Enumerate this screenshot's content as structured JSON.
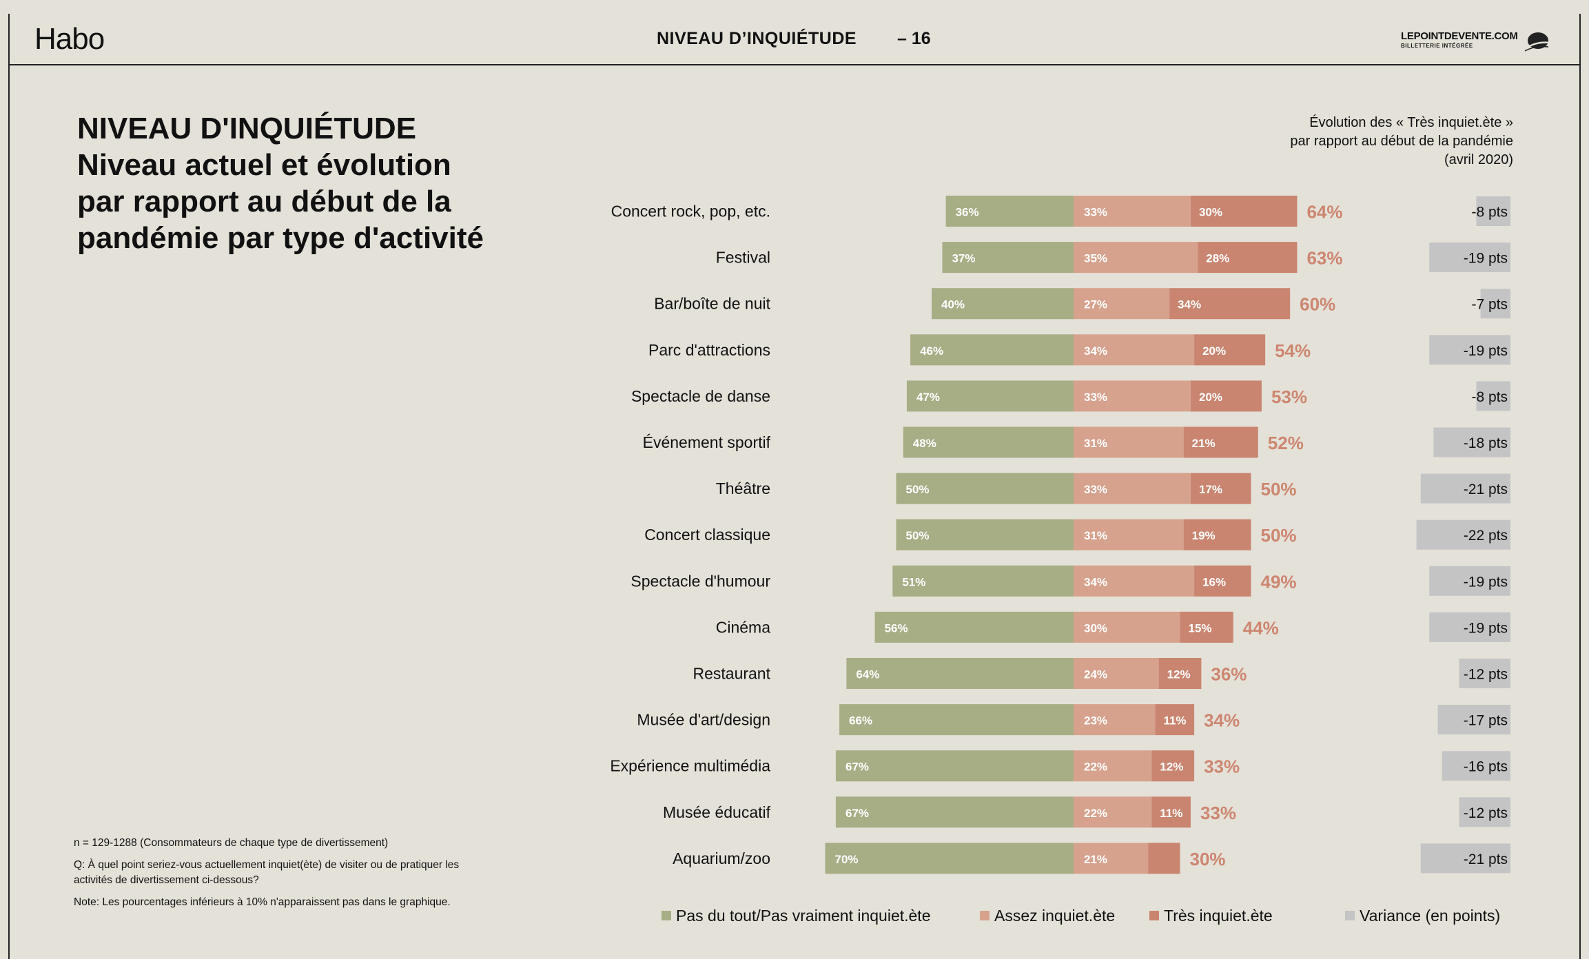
{
  "header": {
    "brand": "Habo",
    "section_title": "NIVEAU D’INQUIÉTUDE",
    "page_number": "– 16",
    "partner_name": "LEPOINTDEVENTE.COM",
    "partner_tagline": "BILLETTERIE INTÉGRÉE"
  },
  "title": {
    "main": "NIVEAU D'INQUIÉTUDE",
    "subtitle": "Niveau actuel et évolution par rapport au début de la pandémie par type d'activité"
  },
  "variance_caption": {
    "line1": "Évolution des « Très inquiet.ète »",
    "line2": "par rapport au début de la pandémie",
    "line3": "(avril 2020)"
  },
  "footnotes": {
    "sample": "n = 129-1288   (Consommateurs de chaque type de divertissement)",
    "question": "Q: À quel point seriez-vous actuellement inquiet(ète) de visiter ou de pratiquer les activités de divertissement ci-dessous?",
    "note": "Note: Les pourcentages inférieurs à 10% n'apparaissent pas dans le graphique."
  },
  "colors": {
    "not_worried": "#a7ad85",
    "somewhat_worried": "#d6a28e",
    "very_worried": "#c98570",
    "total_label": "#cd8670",
    "variance": "#c4c4c4",
    "background": "#e4e1d8"
  },
  "legend": {
    "not_worried": "Pas du tout/Pas vraiment inquiet.ète",
    "somewhat_worried": "Assez inquiet.ète",
    "very_worried": "Très inquiet.ète",
    "variance": "Variance (en points)"
  },
  "chart_data": {
    "type": "bar",
    "orientation": "horizontal-diverging",
    "categories": [
      "Concert rock, pop, etc.",
      "Festival",
      "Bar/boîte de nuit",
      "Parc d'attractions",
      "Spectacle de danse",
      "Événement sportif",
      "Théâtre",
      "Concert classique",
      "Spectacle d'humour",
      "Cinéma",
      "Restaurant",
      "Musée d'art/design",
      "Expérience multimédia",
      "Musée éducatif",
      "Aquarium/zoo"
    ],
    "series": [
      {
        "name": "Pas du tout/Pas vraiment inquiet.ète",
        "values": [
          36,
          37,
          40,
          46,
          47,
          48,
          50,
          50,
          51,
          56,
          64,
          66,
          67,
          67,
          70
        ],
        "labels": [
          "36%",
          "37%",
          "40%",
          "46%",
          "47%",
          "48%",
          "50%",
          "50%",
          "51%",
          "56%",
          "64%",
          "66%",
          "67%",
          "67%",
          "70%"
        ]
      },
      {
        "name": "Assez inquiet.ète",
        "values": [
          33,
          35,
          27,
          34,
          33,
          31,
          33,
          31,
          34,
          30,
          24,
          23,
          22,
          22,
          21
        ],
        "labels": [
          "33%",
          "35%",
          "27%",
          "34%",
          "33%",
          "31%",
          "33%",
          "31%",
          "34%",
          "30%",
          "24%",
          "23%",
          "22%",
          "22%",
          "21%"
        ]
      },
      {
        "name": "Très inquiet.ète",
        "values": [
          30,
          28,
          34,
          20,
          20,
          21,
          17,
          19,
          16,
          15,
          12,
          11,
          12,
          11,
          9
        ],
        "labels": [
          "30%",
          "28%",
          "34%",
          "20%",
          "20%",
          "21%",
          "17%",
          "19%",
          "16%",
          "15%",
          "12%",
          "11%",
          "12%",
          "11%",
          ""
        ]
      }
    ],
    "totals": [
      "64%",
      "63%",
      "60%",
      "54%",
      "53%",
      "52%",
      "50%",
      "50%",
      "49%",
      "44%",
      "36%",
      "34%",
      "33%",
      "33%",
      "30%"
    ],
    "variance": {
      "values": [
        -8,
        -19,
        -7,
        -19,
        -8,
        -18,
        -21,
        -22,
        -19,
        -19,
        -12,
        -17,
        -16,
        -12,
        -21
      ],
      "labels": [
        "-8 pts",
        "-19 pts",
        "-7 pts",
        "-19 pts",
        "-8 pts",
        "-18 pts",
        "-21 pts",
        "-22 pts",
        "-19 pts",
        "-19 pts",
        "-12 pts",
        "-17 pts",
        "-16 pts",
        "-12 pts",
        "-21 pts"
      ]
    }
  }
}
